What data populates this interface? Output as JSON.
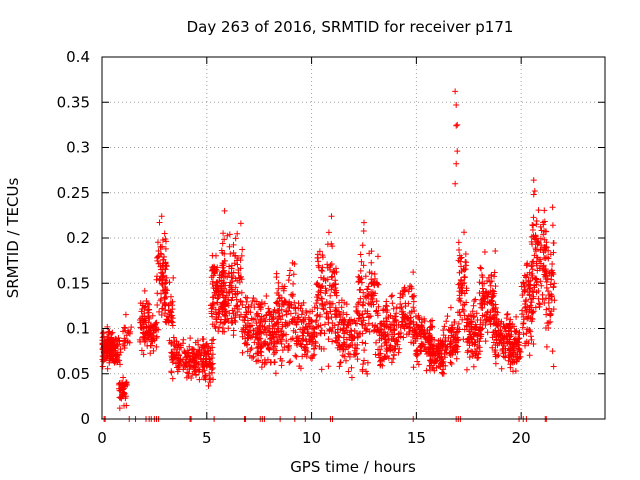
{
  "chart_data": {
    "type": "scatter",
    "title": "Day 263 of 2016, SRMTID for receiver p171",
    "xlabel": "GPS time / hours",
    "ylabel": "SRMTID / TECUs",
    "xlim": [
      0,
      24
    ],
    "ylim": [
      0,
      0.4
    ],
    "xticks": [
      0,
      5,
      10,
      15,
      20
    ],
    "xtick_labels": [
      "0",
      "5",
      "10",
      "15",
      "20"
    ],
    "yticks": [
      0,
      0.05,
      0.1,
      0.15,
      0.2,
      0.25,
      0.3,
      0.35,
      0.4
    ],
    "ytick_labels": [
      "0",
      "0.05",
      "0.1",
      "0.15",
      "0.2",
      "0.25",
      "0.3",
      "0.35",
      "0.4"
    ],
    "grid": true,
    "marker": "+",
    "colors": {
      "points": "#ff0000",
      "grid": "#a0a0a0",
      "axis": "#000000"
    },
    "series": [
      {
        "name": "SRMTID",
        "clusters": [
          {
            "x": [
              0.0,
              0.5
            ],
            "y": [
              0.05,
              0.11
            ],
            "n": 90
          },
          {
            "x": [
              0.3,
              0.9
            ],
            "y": [
              0.05,
              0.1
            ],
            "n": 80
          },
          {
            "x": [
              0.8,
              1.2
            ],
            "y": [
              0.012,
              0.05
            ],
            "n": 45
          },
          {
            "x": [
              1.0,
              1.4
            ],
            "y": [
              0.06,
              0.12
            ],
            "n": 20
          },
          {
            "x": [
              1.8,
              2.3
            ],
            "y": [
              0.06,
              0.145
            ],
            "n": 70
          },
          {
            "x": [
              2.3,
              2.7
            ],
            "y": [
              0.07,
              0.12
            ],
            "n": 35
          },
          {
            "x": [
              2.6,
              3.1
            ],
            "y": [
              0.1,
              0.225
            ],
            "n": 70
          },
          {
            "x": [
              3.0,
              3.4
            ],
            "y": [
              0.08,
              0.165
            ],
            "n": 40
          },
          {
            "x": [
              3.3,
              4.3
            ],
            "y": [
              0.035,
              0.1
            ],
            "n": 90
          },
          {
            "x": [
              4.3,
              5.3
            ],
            "y": [
              0.03,
              0.1
            ],
            "n": 120
          },
          {
            "x": [
              5.2,
              5.9
            ],
            "y": [
              0.06,
              0.2
            ],
            "n": 110
          },
          {
            "x": [
              5.7,
              6.7
            ],
            "y": [
              0.06,
              0.23
            ],
            "n": 120
          },
          {
            "x": [
              6.7,
              7.6
            ],
            "y": [
              0.05,
              0.15
            ],
            "n": 100
          },
          {
            "x": [
              7.4,
              8.3
            ],
            "y": [
              0.04,
              0.155
            ],
            "n": 100
          },
          {
            "x": [
              8.3,
              9.2
            ],
            "y": [
              0.04,
              0.185
            ],
            "n": 110
          },
          {
            "x": [
              9.2,
              10.2
            ],
            "y": [
              0.04,
              0.15
            ],
            "n": 110
          },
          {
            "x": [
              10.2,
              11.2
            ],
            "y": [
              0.04,
              0.225
            ],
            "n": 130
          },
          {
            "x": [
              11.2,
              12.2
            ],
            "y": [
              0.04,
              0.15
            ],
            "n": 110
          },
          {
            "x": [
              12.2,
              13.2
            ],
            "y": [
              0.03,
              0.215
            ],
            "n": 120
          },
          {
            "x": [
              13.2,
              14.2
            ],
            "y": [
              0.04,
              0.15
            ],
            "n": 120
          },
          {
            "x": [
              14.2,
              14.9
            ],
            "y": [
              0.07,
              0.17
            ],
            "n": 70
          },
          {
            "x": [
              14.8,
              15.8
            ],
            "y": [
              0.05,
              0.13
            ],
            "n": 110
          },
          {
            "x": [
              15.6,
              16.4
            ],
            "y": [
              0.035,
              0.1
            ],
            "n": 90
          },
          {
            "x": [
              16.3,
              17.0
            ],
            "y": [
              0.05,
              0.13
            ],
            "n": 70
          },
          {
            "x": [
              17.0,
              17.4
            ],
            "y": [
              0.06,
              0.225
            ],
            "n": 55
          },
          {
            "x": [
              17.4,
              18.1
            ],
            "y": [
              0.05,
              0.14
            ],
            "n": 90
          },
          {
            "x": [
              18.0,
              18.8
            ],
            "y": [
              0.06,
              0.2
            ],
            "n": 100
          },
          {
            "x": [
              18.7,
              19.5
            ],
            "y": [
              0.05,
              0.13
            ],
            "n": 90
          },
          {
            "x": [
              19.4,
              20.0
            ],
            "y": [
              0.04,
              0.12
            ],
            "n": 80
          },
          {
            "x": [
              20.0,
              20.6
            ],
            "y": [
              0.05,
              0.21
            ],
            "n": 80
          },
          {
            "x": [
              20.5,
              21.2
            ],
            "y": [
              0.09,
              0.265
            ],
            "n": 90
          },
          {
            "x": [
              21.1,
              21.6
            ],
            "y": [
              0.06,
              0.235
            ],
            "n": 60
          }
        ],
        "outliers": [
          {
            "x": 16.85,
            "y": 0.362
          },
          {
            "x": 16.9,
            "y": 0.347
          },
          {
            "x": 16.95,
            "y": 0.325
          },
          {
            "x": 16.9,
            "y": 0.324
          },
          {
            "x": 16.95,
            "y": 0.296
          },
          {
            "x": 16.9,
            "y": 0.282
          },
          {
            "x": 16.85,
            "y": 0.26
          },
          {
            "x": 20.6,
            "y": 0.264
          },
          {
            "x": 20.65,
            "y": 0.252
          },
          {
            "x": 20.6,
            "y": 0.248
          },
          {
            "x": 2.85,
            "y": 0.224
          },
          {
            "x": 5.85,
            "y": 0.23
          },
          {
            "x": 10.95,
            "y": 0.224
          },
          {
            "x": 12.5,
            "y": 0.217
          },
          {
            "x": 21.5,
            "y": 0.234
          },
          {
            "x": 0.85,
            "y": 0.012
          },
          {
            "x": 21.5,
            "y": 0.075
          },
          {
            "x": 21.55,
            "y": 0.058
          }
        ],
        "zero_points_x": [
          0.1,
          0.15,
          1.3,
          1.6,
          2.1,
          2.25,
          2.35,
          2.5,
          2.6,
          2.7,
          4.2,
          4.25,
          5.35,
          6.8,
          6.85,
          7.55,
          7.65,
          7.75,
          8.5,
          9.2,
          9.7,
          10.9,
          11.0,
          14.85,
          16.9,
          17.0,
          17.1,
          19.9,
          20.1,
          20.25,
          21.15,
          21.2
        ]
      }
    ]
  }
}
